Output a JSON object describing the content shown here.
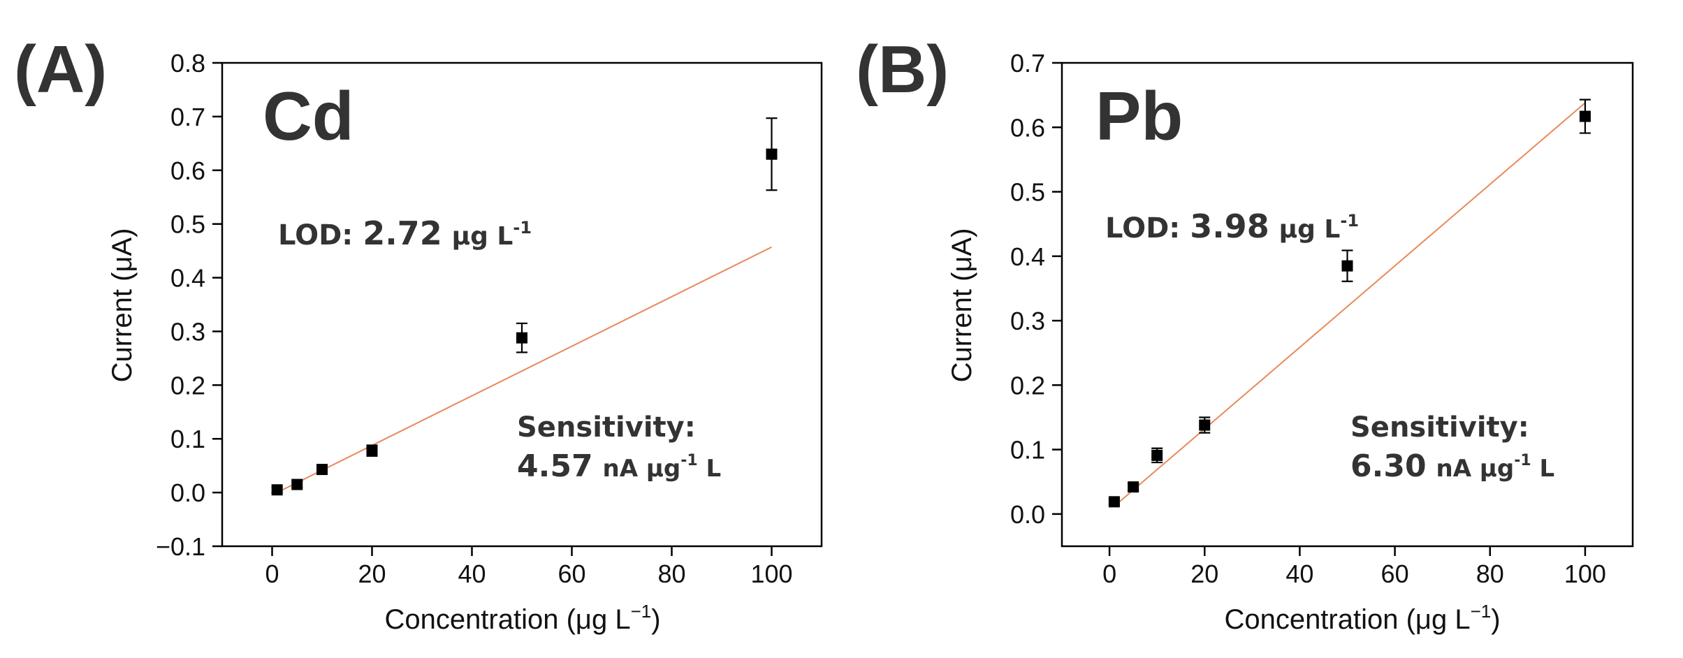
{
  "figure": {
    "panels": [
      {
        "label": "(A)",
        "metal": "Cd",
        "lod_label": "LOD:",
        "lod_value": "2.72",
        "lod_unit": "μg L",
        "lod_exp": "-1",
        "sens_label": "Sensitivity:",
        "sens_value": "4.57",
        "sens_unit_a": "nA μg",
        "sens_exp": "-1",
        "sens_unit_b": " L",
        "xlabel": "Concentration (μg L",
        "xlabel_exp": "−1",
        "xlabel_end": ")",
        "ylabel": "Current (μA)"
      },
      {
        "label": "(B)",
        "metal": "Pb",
        "lod_label": "LOD:",
        "lod_value": "3.98",
        "lod_unit": "μg L",
        "lod_exp": "-1",
        "sens_label": "Sensitivity:",
        "sens_value": "6.30",
        "sens_unit_a": "nA μg",
        "sens_exp": "-1",
        "sens_unit_b": " L",
        "xlabel": "Concentration (μg L",
        "xlabel_exp": "−1",
        "xlabel_end": ")",
        "ylabel": "Current (μA)"
      }
    ]
  },
  "chart_data": [
    {
      "type": "scatter",
      "title": "Cd",
      "xlabel": "Concentration (μg L−1)",
      "ylabel": "Current (μA)",
      "xlim": [
        -10,
        110
      ],
      "ylim": [
        -0.1,
        0.8
      ],
      "xticks": [
        0,
        20,
        40,
        60,
        80,
        100
      ],
      "xtick_labels": [
        "0",
        "20",
        "40",
        "60",
        "80",
        "100"
      ],
      "yticks": [
        -0.1,
        0.0,
        0.1,
        0.2,
        0.3,
        0.4,
        0.5,
        0.6,
        0.7,
        0.8
      ],
      "ytick_labels": [
        "−0.1",
        "0.0",
        "0.1",
        "0.2",
        "0.3",
        "0.4",
        "0.5",
        "0.6",
        "0.7",
        "0.8"
      ],
      "x": [
        1,
        5,
        10,
        20,
        50,
        100
      ],
      "y": [
        0.005,
        0.015,
        0.043,
        0.078,
        0.288,
        0.63
      ],
      "yerr": [
        0.005,
        0.006,
        0.006,
        0.01,
        0.027,
        0.067
      ],
      "fit_line": {
        "x": [
          1,
          100
        ],
        "y": [
          0.0,
          0.457
        ],
        "color": "#e8895a"
      },
      "marker_color": "#000000"
    },
    {
      "type": "scatter",
      "title": "Pb",
      "xlabel": "Concentration (μg L−1)",
      "ylabel": "Current (μA)",
      "xlim": [
        -10,
        110
      ],
      "ylim": [
        -0.05,
        0.7
      ],
      "xticks": [
        0,
        20,
        40,
        60,
        80,
        100
      ],
      "xtick_labels": [
        "0",
        "20",
        "40",
        "60",
        "80",
        "100"
      ],
      "yticks": [
        0.0,
        0.1,
        0.2,
        0.3,
        0.4,
        0.5,
        0.6,
        0.7
      ],
      "ytick_labels": [
        "0.0",
        "0.1",
        "0.2",
        "0.3",
        "0.4",
        "0.5",
        "0.6",
        "0.7"
      ],
      "x": [
        1,
        5,
        10,
        20,
        50,
        100
      ],
      "y": [
        0.019,
        0.042,
        0.091,
        0.138,
        0.385,
        0.617
      ],
      "yerr": [
        0.004,
        0.005,
        0.011,
        0.012,
        0.024,
        0.026
      ],
      "fit_line": {
        "x": [
          1,
          100
        ],
        "y": [
          0.012,
          0.638
        ],
        "color": "#e8895a"
      },
      "marker_color": "#000000"
    }
  ]
}
